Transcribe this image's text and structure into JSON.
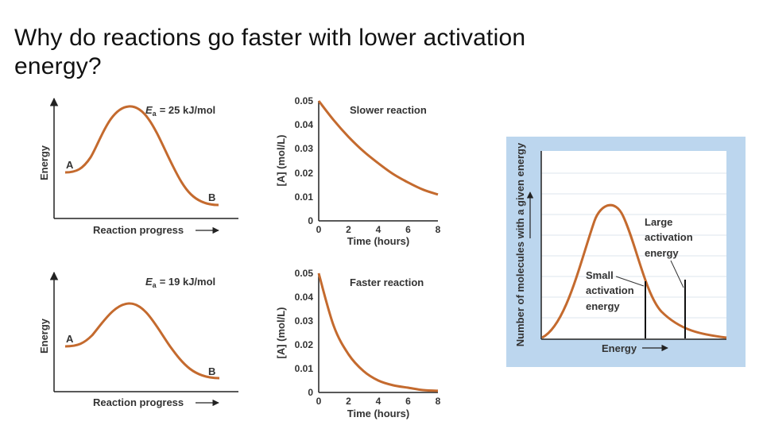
{
  "slide": {
    "title": "Why do reactions go faster with lower activation energy?"
  },
  "colors": {
    "curve": "#C46A2E",
    "axis": "#222222",
    "panel_bg": "#BCD6EE",
    "grid": "#DDE6EE"
  },
  "diagram_top": {
    "y_label": "Energy",
    "x_label": "Reaction progress",
    "ea_symbol": "E",
    "ea_sub": "a",
    "ea_value": "= 25 kJ/mol",
    "point_a": "A",
    "point_b": "B"
  },
  "diagram_bottom": {
    "y_label": "Energy",
    "x_label": "Reaction progress",
    "ea_symbol": "E",
    "ea_sub": "a",
    "ea_value": "= 19 kJ/mol",
    "point_a": "A",
    "point_b": "B"
  },
  "chart_top": {
    "title": "Slower reaction",
    "y_label": "[A] (mol/L)",
    "x_label": "Time (hours)",
    "y_ticks": [
      "0",
      "0.01",
      "0.02",
      "0.03",
      "0.04",
      "0.05"
    ],
    "x_ticks": [
      "0",
      "2",
      "4",
      "6",
      "8"
    ]
  },
  "chart_bottom": {
    "title": "Faster reaction",
    "y_label": "[A] (mol/L)",
    "x_label": "Time (hours)",
    "y_ticks": [
      "0",
      "0.01",
      "0.02",
      "0.03",
      "0.04",
      "0.05"
    ],
    "x_ticks": [
      "0",
      "2",
      "4",
      "6",
      "8"
    ]
  },
  "distribution": {
    "y_label": "Number of molecules with a given energy",
    "x_label": "Energy",
    "small_ea": [
      "Small",
      "activation",
      "energy"
    ],
    "large_ea": [
      "Large",
      "activation",
      "energy"
    ]
  },
  "chart_data": [
    {
      "type": "line",
      "title": "Slower reaction",
      "xlabel": "Time (hours)",
      "ylabel": "[A] (mol/L)",
      "xlim": [
        0,
        8
      ],
      "ylim": [
        0,
        0.05
      ],
      "x": [
        0,
        1,
        2,
        3,
        4,
        5,
        6,
        7,
        8
      ],
      "series": [
        {
          "name": "[A]",
          "values": [
            0.05,
            0.042,
            0.035,
            0.029,
            0.024,
            0.0195,
            0.016,
            0.013,
            0.011
          ]
        }
      ]
    },
    {
      "type": "line",
      "title": "Faster reaction",
      "xlabel": "Time (hours)",
      "ylabel": "[A] (mol/L)",
      "xlim": [
        0,
        8
      ],
      "ylim": [
        0,
        0.05
      ],
      "x": [
        0,
        1,
        2,
        3,
        4,
        5,
        6,
        7,
        8
      ],
      "series": [
        {
          "name": "[A]",
          "values": [
            0.05,
            0.028,
            0.016,
            0.009,
            0.005,
            0.003,
            0.002,
            0.001,
            0.0007
          ]
        }
      ]
    }
  ]
}
